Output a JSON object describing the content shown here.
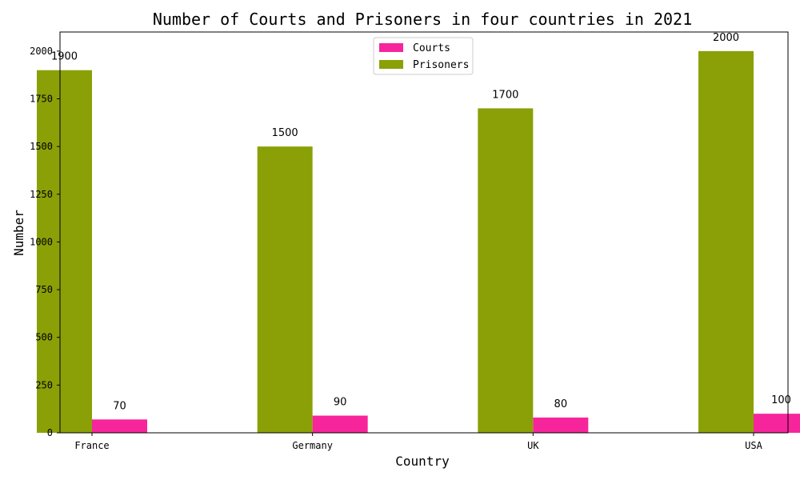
{
  "chart_data": {
    "type": "bar",
    "title": "Number of Courts and Prisoners in four countries in 2021",
    "xlabel": "Country",
    "ylabel": "Number",
    "categories": [
      "France",
      "Germany",
      "UK",
      "USA"
    ],
    "series": [
      {
        "name": "Courts",
        "values": [
          70,
          90,
          80,
          100
        ],
        "color": "#f7259b"
      },
      {
        "name": "Prisoners",
        "values": [
          1900,
          1500,
          1700,
          2000
        ],
        "color": "#8ba006"
      }
    ],
    "ylim": [
      0,
      2100
    ],
    "yticks": [
      0,
      250,
      500,
      750,
      1000,
      1250,
      1500,
      1750,
      2000
    ],
    "grid": false,
    "legend_position": "top-center"
  }
}
